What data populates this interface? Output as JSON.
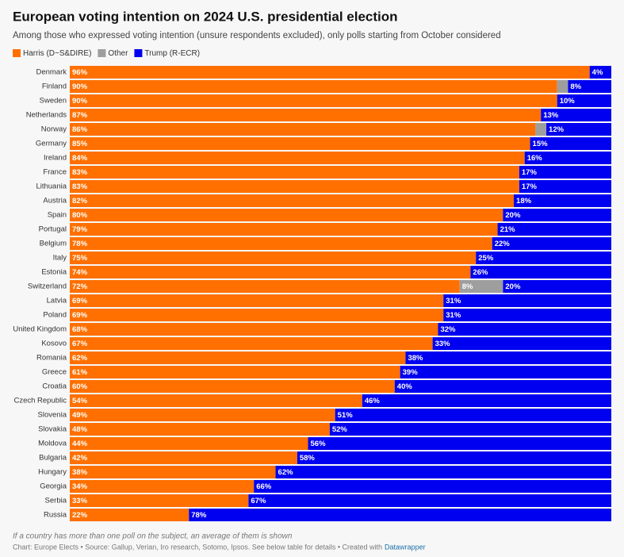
{
  "chart_data": {
    "type": "stacked-bar-horizontal",
    "title": "European voting intention on 2024 U.S. presidential election",
    "subtitle": "Among those who expressed voting intention (unsure respondents excluded), only polls starting from October considered",
    "categories": [
      "Denmark",
      "Finland",
      "Sweden",
      "Netherlands",
      "Norway",
      "Germany",
      "Ireland",
      "France",
      "Lithuania",
      "Austria",
      "Spain",
      "Portugal",
      "Belgium",
      "Italy",
      "Estonia",
      "Switzerland",
      "Latvia",
      "Poland",
      "United Kingdom",
      "Kosovo",
      "Romania",
      "Greece",
      "Croatia",
      "Czech Republic",
      "Slovenia",
      "Slovakia",
      "Moldova",
      "Bulgaria",
      "Hungary",
      "Georgia",
      "Serbia",
      "Russia"
    ],
    "series": [
      {
        "name": "Harris (D~S&DIRE)",
        "color": "#ff7000",
        "values": [
          96,
          90,
          90,
          87,
          86,
          85,
          84,
          83,
          83,
          82,
          80,
          79,
          78,
          75,
          74,
          72,
          69,
          69,
          68,
          67,
          62,
          61,
          60,
          54,
          49,
          48,
          44,
          42,
          38,
          34,
          33,
          22
        ],
        "value_labels": [
          "96%",
          "90%",
          "90%",
          "87%",
          "86%",
          "85%",
          "84%",
          "83%",
          "83%",
          "82%",
          "80%",
          "79%",
          "78%",
          "75%",
          "74%",
          "72%",
          "69%",
          "69%",
          "68%",
          "67%",
          "62%",
          "61%",
          "60%",
          "54%",
          "49%",
          "48%",
          "44%",
          "42%",
          "38%",
          "34%",
          "33%",
          "22%"
        ]
      },
      {
        "name": "Other",
        "color": "#9e9e9e",
        "values": [
          0,
          2,
          0,
          0,
          2,
          0,
          0,
          0,
          0,
          0,
          0,
          0,
          0,
          0,
          0,
          8,
          0,
          0,
          0,
          0,
          0,
          0,
          0,
          0,
          0,
          0,
          0,
          0,
          0,
          0,
          0,
          0
        ],
        "value_labels": [
          null,
          null,
          null,
          null,
          null,
          null,
          null,
          null,
          null,
          null,
          null,
          null,
          null,
          null,
          null,
          "8%",
          null,
          null,
          null,
          null,
          null,
          null,
          null,
          null,
          null,
          null,
          null,
          null,
          null,
          null,
          null,
          null
        ]
      },
      {
        "name": "Trump (R-ECR)",
        "color": "#0000f0",
        "values": [
          4,
          8,
          10,
          13,
          12,
          15,
          16,
          17,
          17,
          18,
          20,
          21,
          22,
          25,
          26,
          20,
          31,
          31,
          32,
          33,
          38,
          39,
          40,
          46,
          51,
          52,
          56,
          58,
          62,
          66,
          67,
          78
        ],
        "value_labels": [
          "4%",
          "8%",
          "10%",
          "13%",
          "12%",
          "15%",
          "16%",
          "17%",
          "17%",
          "18%",
          "20%",
          "21%",
          "22%",
          "25%",
          "26%",
          "20%",
          "31%",
          "31%",
          "32%",
          "33%",
          "38%",
          "39%",
          "40%",
          "46%",
          "51%",
          "52%",
          "56%",
          "58%",
          "62%",
          "66%",
          "67%",
          "78%"
        ]
      }
    ],
    "note": "If a country has more than one poll on the subject, an average of them is shown",
    "source": "Chart: Europe Elects • Source: Gallup, Verian, Iro research, Sotomo, Ipsos. See below table for details • Created with",
    "credit_link": "Datawrapper"
  }
}
